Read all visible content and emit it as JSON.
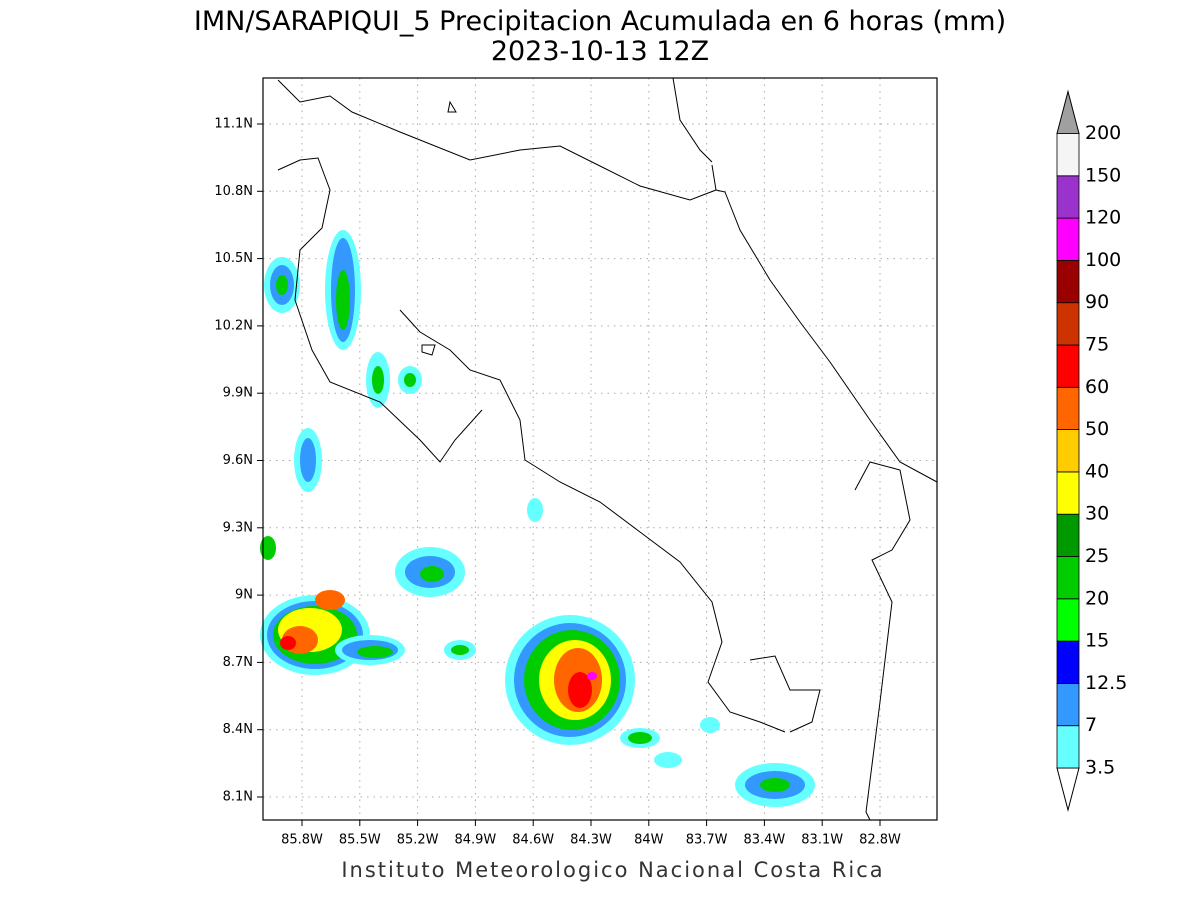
{
  "title": "IMN/SARAPIQUI_5 Precipitacion Acumulada en 6 horas (mm)",
  "subtitle": "2023-10-13 12Z",
  "x_axis_labels": [
    "85.8W",
    "85.5W",
    "85.2W",
    "84.9W",
    "84.6W",
    "84.3W",
    "84W",
    "83.7W",
    "83.4W",
    "83.1W",
    "82.8W"
  ],
  "y_axis_labels": [
    "11.1N",
    "10.8N",
    "10.5N",
    "10.2N",
    "9.9N",
    "9.6N",
    "9.3N",
    "9N",
    "8.7N",
    "8.4N",
    "8.1N"
  ],
  "colorbar": {
    "labels": [
      "3.5",
      "7",
      "12.5",
      "15",
      "20",
      "25",
      "30",
      "40",
      "50",
      "60",
      "75",
      "90",
      "100",
      "120",
      "150",
      "200"
    ],
    "colors": [
      "#66ffff",
      "#3399ff",
      "#0000ff",
      "#00ff00",
      "#00cc00",
      "#009900",
      "#ffff00",
      "#ffcc00",
      "#ff6600",
      "#ff0000",
      "#cc3300",
      "#990000",
      "#ff00ff",
      "#9933cc",
      "#f5f5f5"
    ],
    "over_color": "#a0a0a0",
    "under_color": "#ffffff"
  },
  "footer": "Instituto Meteorologico Nacional Costa Rica"
}
